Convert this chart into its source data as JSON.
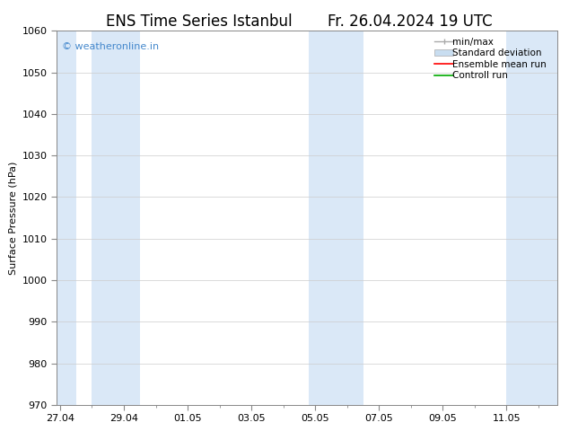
{
  "title_left": "ENS Time Series Istanbul",
  "title_right": "Fr. 26.04.2024 19 UTC",
  "ylabel": "Surface Pressure (hPa)",
  "ylim": [
    970,
    1060
  ],
  "yticks": [
    970,
    980,
    990,
    1000,
    1010,
    1020,
    1030,
    1040,
    1050,
    1060
  ],
  "xtick_labels": [
    "27.04",
    "29.04",
    "01.05",
    "03.05",
    "05.05",
    "07.05",
    "09.05",
    "11.05"
  ],
  "xtick_positions": [
    0,
    2,
    4,
    6,
    8,
    10,
    12,
    14
  ],
  "xlim": [
    -0.1,
    15.6
  ],
  "shaded_bands": [
    {
      "xmin": -0.1,
      "xmax": 0.5
    },
    {
      "xmin": 1.0,
      "xmax": 2.5
    },
    {
      "xmin": 7.8,
      "xmax": 8.5
    },
    {
      "xmin": 8.5,
      "xmax": 9.5
    },
    {
      "xmin": 14.0,
      "xmax": 15.6
    }
  ],
  "shaded_color": "#dae8f7",
  "legend_labels": [
    "min/max",
    "Standard deviation",
    "Ensemble mean run",
    "Controll run"
  ],
  "minmax_color": "#aaaaaa",
  "stddev_color": "#c8ddf0",
  "ensemble_color": "#ff0000",
  "control_color": "#00aa00",
  "watermark": "© weatheronline.in",
  "watermark_color": "#4488cc",
  "bg_color": "#ffffff",
  "title_fontsize": 12,
  "label_fontsize": 8,
  "tick_fontsize": 8,
  "legend_fontsize": 7.5,
  "watermark_fontsize": 8
}
